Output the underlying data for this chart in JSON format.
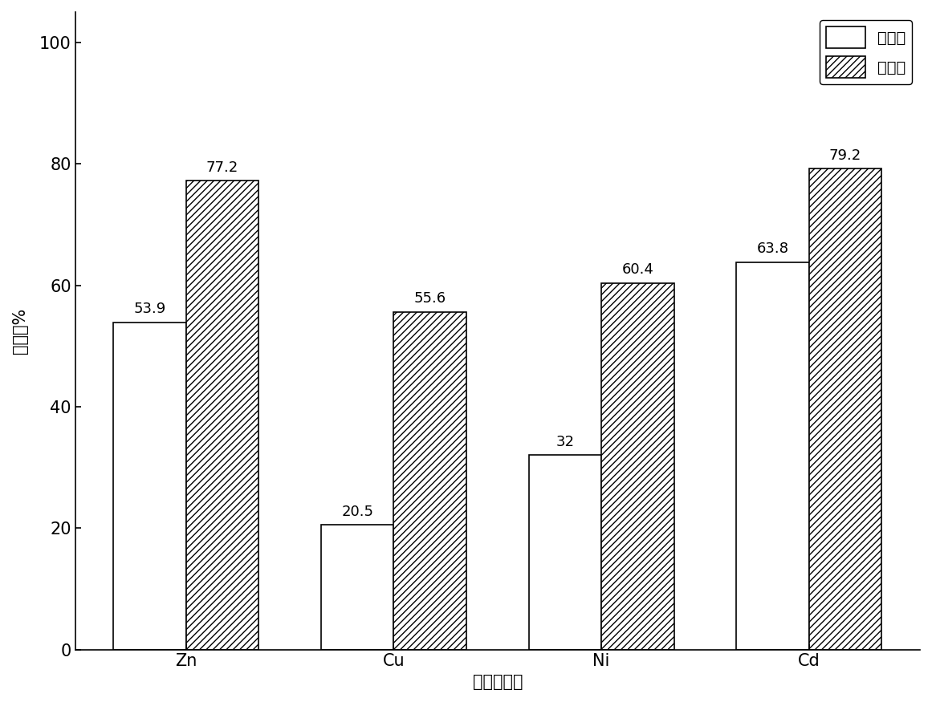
{
  "categories": [
    "Zn",
    "Cu",
    "Ni",
    "Cd"
  ],
  "before": [
    53.9,
    20.5,
    32,
    63.8
  ],
  "after": [
    77.2,
    55.6,
    60.4,
    79.2
  ],
  "ylabel": "去除率%",
  "xlabel": "重金属种类",
  "ylim": [
    0,
    105
  ],
  "yticks": [
    0,
    20,
    40,
    60,
    80,
    100
  ],
  "legend_before": "驯化前",
  "legend_after": "驯化后",
  "bar_width": 0.35,
  "title_fontsize": 16,
  "label_fontsize": 15,
  "tick_fontsize": 15,
  "annotation_fontsize": 13,
  "legend_fontsize": 14,
  "face_color": "#ffffff",
  "bar_before_color": "#ffffff",
  "bar_after_color": "#ffffff",
  "bar_edge_color": "#000000",
  "hatch_after": "////",
  "hatch_before": ""
}
